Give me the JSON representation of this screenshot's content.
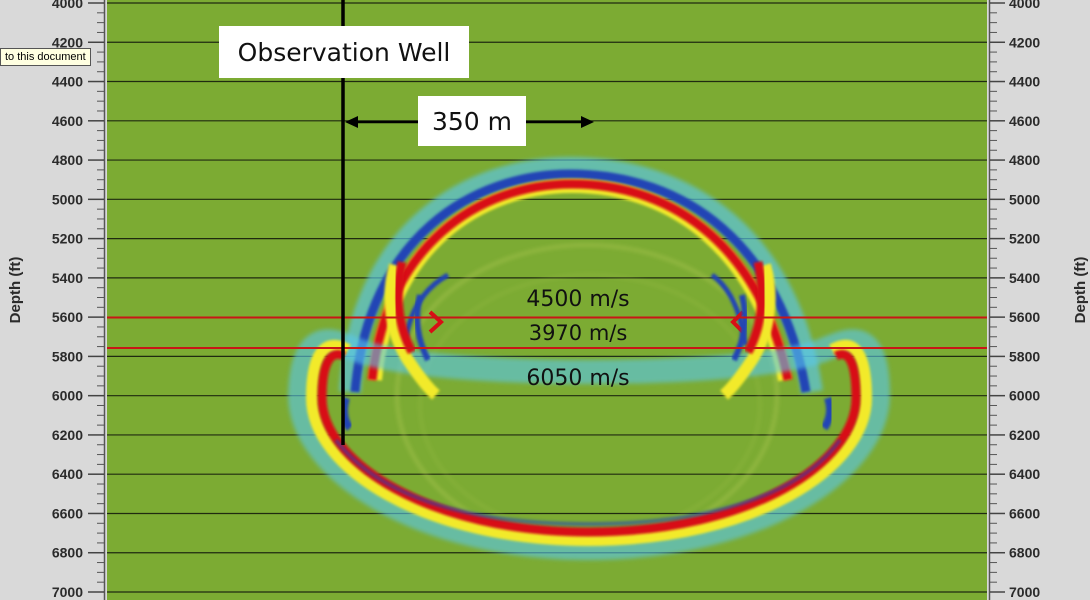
{
  "tooltip": {
    "text": "to this document"
  },
  "axis": {
    "left_title": "Depth (ft)",
    "right_title": "Depth (ft)",
    "ticks": [
      4000,
      4200,
      4400,
      4600,
      4800,
      5000,
      5200,
      5400,
      5600,
      5800,
      6000,
      6200,
      6400,
      6600,
      6800,
      7000
    ]
  },
  "annotations": {
    "well_label": "Observation Well",
    "distance_label": "350 m",
    "velocity_upper": "4500 m/s",
    "velocity_middle": "3970 m/s",
    "velocity_lower": "6050 m/s"
  },
  "colors": {
    "background": "#7cab33",
    "red": "#d80e16",
    "yellow": "#f2ea2c",
    "blue": "#2145b5",
    "light_blue": "#5ac8ec",
    "boundary_line": "#c81616"
  }
}
